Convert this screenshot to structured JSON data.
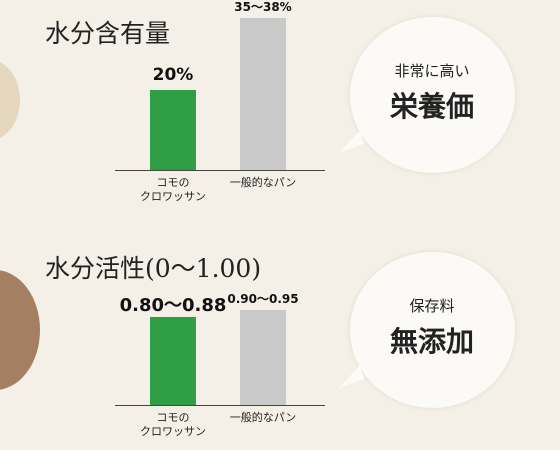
{
  "chart_data": [
    {
      "type": "bar",
      "title": "水分含有量",
      "categories": [
        "コモの\nクロワッサン",
        "一般的なパン"
      ],
      "values": [
        20,
        38
      ],
      "value_labels": [
        "20%",
        "35〜38%"
      ],
      "colors": [
        "#2f9e44",
        "#c9c9c9"
      ],
      "callout": [
        "非常に高い",
        "栄養価"
      ]
    },
    {
      "type": "bar",
      "title": "水分活性(0〜1.00)",
      "categories": [
        "コモの\nクロワッサン",
        "一般的なパン"
      ],
      "values": [
        0.88,
        0.95
      ],
      "value_labels": [
        "0.80〜0.88",
        "0.90〜0.95"
      ],
      "colors": [
        "#2f9e44",
        "#c9c9c9"
      ],
      "callout": [
        "保存料",
        "無添加"
      ]
    }
  ]
}
